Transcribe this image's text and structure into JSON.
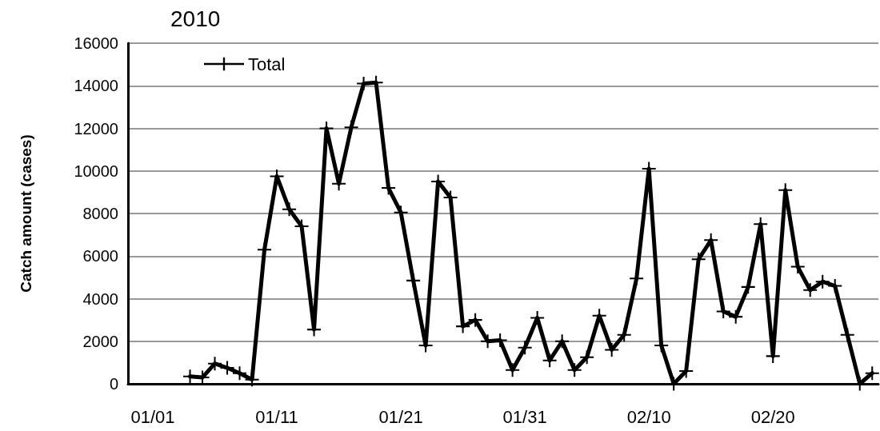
{
  "chart_data": {
    "type": "line",
    "title": "2010",
    "ylabel": "Catch amount (cases)",
    "x": [
      "2010-01-04",
      "2010-01-05",
      "2010-01-06",
      "2010-01-07",
      "2010-01-08",
      "2010-01-09",
      "2010-01-10",
      "2010-01-11",
      "2010-01-12",
      "2010-01-13",
      "2010-01-14",
      "2010-01-15",
      "2010-01-16",
      "2010-01-17",
      "2010-01-18",
      "2010-01-19",
      "2010-01-20",
      "2010-01-21",
      "2010-01-22",
      "2010-01-23",
      "2010-01-24",
      "2010-01-25",
      "2010-01-26",
      "2010-01-27",
      "2010-01-28",
      "2010-01-29",
      "2010-01-30",
      "2010-01-31",
      "2010-02-01",
      "2010-02-02",
      "2010-02-03",
      "2010-02-04",
      "2010-02-05",
      "2010-02-06",
      "2010-02-07",
      "2010-02-08",
      "2010-02-09",
      "2010-02-10",
      "2010-02-11",
      "2010-02-12",
      "2010-02-13",
      "2010-02-14",
      "2010-02-15",
      "2010-02-16",
      "2010-02-17",
      "2010-02-18",
      "2010-02-19",
      "2010-02-20",
      "2010-02-21",
      "2010-02-22",
      "2010-02-23",
      "2010-02-24",
      "2010-02-25",
      "2010-02-26",
      "2010-02-27",
      "2010-02-28"
    ],
    "series": [
      {
        "name": "Total",
        "color": "#000000",
        "values": [
          350,
          300,
          950,
          750,
          500,
          200,
          6300,
          9750,
          8200,
          7400,
          2550,
          12000,
          9400,
          12050,
          14100,
          14150,
          9200,
          8050,
          4850,
          1800,
          9500,
          8750,
          2700,
          3000,
          2000,
          2050,
          650,
          1700,
          3100,
          1100,
          2000,
          650,
          1250,
          3200,
          1600,
          2300,
          4950,
          10100,
          1800,
          0,
          600,
          5850,
          6750,
          3400,
          3150,
          4550,
          7500,
          1300,
          9100,
          5500,
          4400,
          4800,
          4600,
          2300,
          0,
          500
        ]
      }
    ],
    "xlim": [
      "2009-12-30",
      "2010-02-28T12:00"
    ],
    "xticks": [
      {
        "value": "2010-01-01",
        "label": "01/01"
      },
      {
        "value": "2010-01-11",
        "label": "01/11"
      },
      {
        "value": "2010-01-21",
        "label": "01/21"
      },
      {
        "value": "2010-01-31",
        "label": "01/31"
      },
      {
        "value": "2010-02-10",
        "label": "02/10"
      },
      {
        "value": "2010-02-20",
        "label": "02/20"
      }
    ],
    "ylim": [
      0,
      16000
    ],
    "yticks": [
      0,
      2000,
      4000,
      6000,
      8000,
      10000,
      12000,
      14000,
      16000
    ],
    "grid": "y",
    "legend": "top left",
    "marker": "cross",
    "line_style": "solid"
  }
}
